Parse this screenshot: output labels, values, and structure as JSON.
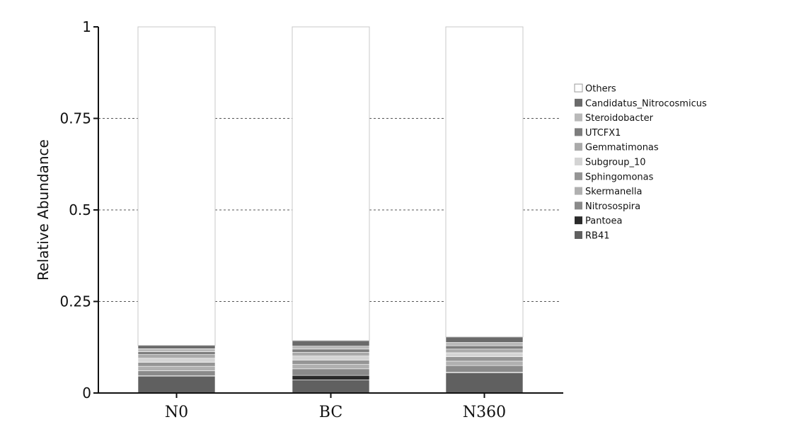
{
  "chart_data": {
    "type": "bar",
    "stacked": true,
    "categories": [
      "N0",
      "BC",
      "N360"
    ],
    "ylabel": "Relative Abundance",
    "ylim": [
      0,
      1
    ],
    "yticks": [
      "0",
      "0.25",
      "0.5",
      "0.75",
      "1"
    ],
    "grid": "dashed horizontal",
    "legend_position": "right",
    "series": [
      {
        "name": "RB41",
        "color": "#606060",
        "values": [
          0.045,
          0.036,
          0.055
        ]
      },
      {
        "name": "Pantoea",
        "color": "#2a2a2a",
        "values": [
          0.002,
          0.012,
          0.002
        ]
      },
      {
        "name": "Nitrosospira",
        "color": "#8a8a8a",
        "values": [
          0.014,
          0.018,
          0.018
        ]
      },
      {
        "name": "Skermanella",
        "color": "#b0b0b0",
        "values": [
          0.012,
          0.012,
          0.012
        ]
      },
      {
        "name": "Sphingomonas",
        "color": "#959595",
        "values": [
          0.011,
          0.012,
          0.012
        ]
      },
      {
        "name": "Subgroup_10",
        "color": "#d4d4d4",
        "values": [
          0.011,
          0.011,
          0.011
        ]
      },
      {
        "name": "Gemmatimonas",
        "color": "#aaaaaa",
        "values": [
          0.01,
          0.01,
          0.01
        ]
      },
      {
        "name": "UTCFX1",
        "color": "#7d7d7d",
        "values": [
          0.008,
          0.009,
          0.009
        ]
      },
      {
        "name": "Steroidobacter",
        "color": "#b9b9b9",
        "values": [
          0.008,
          0.008,
          0.009
        ]
      },
      {
        "name": "Candidatus_Nitrocosmicus",
        "color": "#6a6a6a",
        "values": [
          0.009,
          0.015,
          0.015
        ]
      },
      {
        "name": "Others",
        "color": "#ffffff",
        "values": [
          0.87,
          0.857,
          0.847
        ]
      }
    ],
    "legend_order": [
      "Others",
      "Candidatus_Nitrocosmicus",
      "Steroidobacter",
      "UTCFX1",
      "Gemmatimonas",
      "Subgroup_10",
      "Sphingomonas",
      "Skermanella",
      "Nitrosospira",
      "Pantoea",
      "RB41"
    ]
  }
}
